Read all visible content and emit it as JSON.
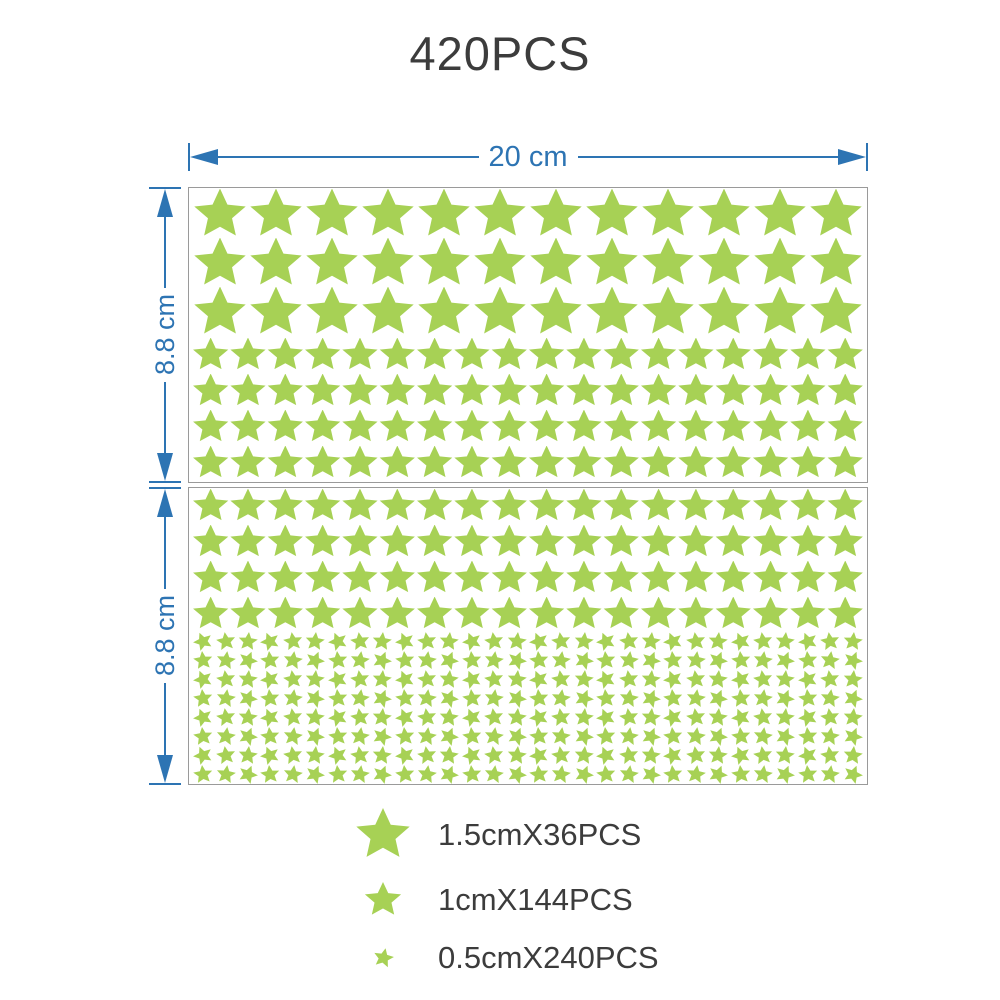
{
  "title": "420PCS",
  "dimension_labels": {
    "width": "20 cm",
    "panel1_height": "8.8 cm",
    "panel2_height": "8.8 cm"
  },
  "colors": {
    "star_green": "#a7d155",
    "dimension_blue": "#2d74b3",
    "text": "#3c3c3c",
    "panel_border": "#9a9a9a"
  },
  "panels": [
    {
      "name": "top-sheet",
      "sections": [
        {
          "star_size": "large",
          "rows": 3,
          "stars_per_row": 12
        },
        {
          "star_size": "medium",
          "rows": 4,
          "stars_per_row": 18
        }
      ]
    },
    {
      "name": "bottom-sheet",
      "sections": [
        {
          "star_size": "medium",
          "rows": 4,
          "stars_per_row": 18
        },
        {
          "star_size": "small",
          "rows": 8,
          "stars_per_row": 30
        }
      ]
    }
  ],
  "legend": [
    {
      "star_size": "large",
      "label": "1.5cmX36PCS"
    },
    {
      "star_size": "medium",
      "label": "1cmX144PCS"
    },
    {
      "star_size": "small",
      "label": "0.5cmX240PCS"
    }
  ]
}
